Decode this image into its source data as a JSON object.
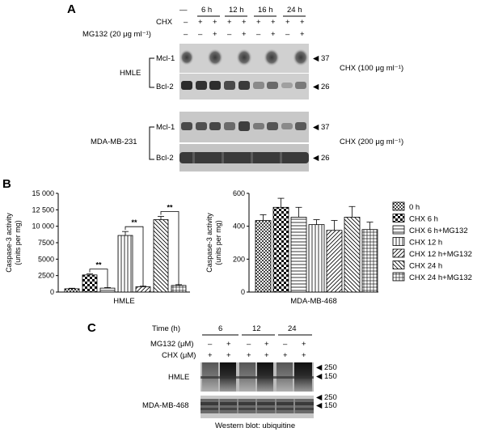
{
  "panel_a": {
    "letter": "A",
    "timepoints": [
      "—",
      "6 h",
      "12 h",
      "16 h",
      "24 h"
    ],
    "row_labels": {
      "chx": "CHX",
      "mg132": "MG132 (20 μg ml⁻¹)"
    },
    "chx_signs": [
      "–",
      "+",
      "+",
      "+",
      "+",
      "+",
      "+",
      "+",
      "+"
    ],
    "mg132_signs": [
      "–",
      "–",
      "+",
      "–",
      "+",
      "–",
      "+",
      "–",
      "+"
    ],
    "blocks": [
      {
        "cell_line": "HMLE",
        "proteins": [
          "Mcl-1",
          "Bcl-2"
        ],
        "markers": [
          "◀ 37",
          "◀ 26"
        ],
        "treatment": "CHX (100 μg ml⁻¹)"
      },
      {
        "cell_line": "MDA-MB-231",
        "proteins": [
          "Mcl-1",
          "Bcl-2"
        ],
        "markers": [
          "◀ 37",
          "◀ 26"
        ],
        "treatment": "CHX (200 μg ml⁻¹)"
      }
    ]
  },
  "panel_b": {
    "letter": "B",
    "legend": [
      "0 h",
      "CHX 6 h",
      "CHX 6 h+MG132",
      "CHX 12 h",
      "CHX 12 h+MG132",
      "CHX 24 h",
      "CHX 24 h+MG132"
    ],
    "patterns": [
      "dots",
      "checker",
      "hlines",
      "vlines",
      "diag",
      "diag2",
      "grid"
    ],
    "significance": "**"
  },
  "chart_data": [
    {
      "type": "bar",
      "title": "",
      "xlabel": "HMLE",
      "ylabel": "Caspase-3 activity (units per mg)",
      "ylim": [
        0,
        15000
      ],
      "yticks": [
        0,
        2500,
        5000,
        7500,
        10000,
        12500,
        15000
      ],
      "ytick_labels": [
        "0",
        "2500",
        "5000",
        "7500",
        "10 000",
        "12 500",
        "15 000"
      ],
      "categories": [
        "0 h",
        "CHX 6 h",
        "CHX 6 h+MG132",
        "CHX 12 h",
        "CHX 12 h+MG132",
        "CHX 24 h",
        "CHX 24 h+MG132"
      ],
      "values": [
        500,
        2600,
        600,
        8600,
        800,
        11000,
        1000
      ],
      "errors": [
        80,
        150,
        80,
        600,
        90,
        500,
        120
      ],
      "significance_pairs": [
        [
          1,
          2
        ],
        [
          3,
          4
        ],
        [
          5,
          6
        ]
      ]
    },
    {
      "type": "bar",
      "title": "",
      "xlabel": "MDA-MB-468",
      "ylabel": "Caspase-3 activity (units per mg)",
      "ylim": [
        0,
        600
      ],
      "yticks": [
        0,
        200,
        400,
        600
      ],
      "ytick_labels": [
        "0",
        "200",
        "400",
        "600"
      ],
      "categories": [
        "0 h",
        "CHX 6 h",
        "CHX 6 h+MG132",
        "CHX 12 h",
        "CHX 12 h+MG132",
        "CHX 24 h",
        "CHX 24 h+MG132"
      ],
      "values": [
        435,
        515,
        455,
        410,
        375,
        455,
        380
      ],
      "errors": [
        35,
        55,
        60,
        30,
        60,
        65,
        45
      ]
    }
  ],
  "panel_c": {
    "letter": "C",
    "time_label": "Time (h)",
    "times": [
      "6",
      "12",
      "24"
    ],
    "mg132_label": "MG132 (μM)",
    "chx_label": "CHX (μM)",
    "mg132_signs": [
      "–",
      "+",
      "–",
      "+",
      "–",
      "+"
    ],
    "chx_signs": [
      "+",
      "+",
      "+",
      "+",
      "+",
      "+"
    ],
    "cell_lines": [
      "HMLE",
      "MDA-MB-468"
    ],
    "markers": [
      "◀ 250",
      "◀ 150"
    ],
    "caption": "Western blot: ubiquitine"
  }
}
